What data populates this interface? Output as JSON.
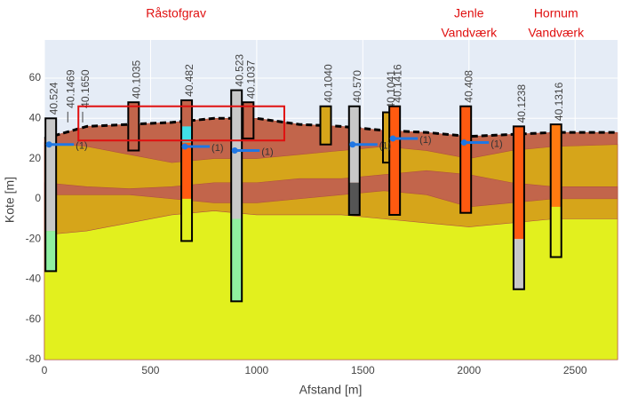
{
  "chart_data": {
    "type": "cross-section",
    "xlabel": "Afstand [m]",
    "ylabel": "Kote [m]",
    "xlim": [
      0,
      2700
    ],
    "ylim": [
      -80,
      79
    ],
    "xticks": [
      0,
      500,
      1000,
      1500,
      2000,
      2500
    ],
    "yticks": [
      -80,
      -60,
      -40,
      -20,
      0,
      20,
      40,
      60
    ],
    "grid": true,
    "x": [
      0,
      200,
      400,
      600,
      800,
      1000,
      1200,
      1400,
      1600,
      1800,
      2000,
      2200,
      2400,
      2700
    ],
    "terrain": [
      30,
      36,
      37,
      38,
      40,
      40,
      37,
      36,
      34,
      33,
      31,
      32,
      33,
      33
    ],
    "layers": [
      {
        "color": "#c2654b",
        "values": [
          30,
          36,
          37,
          38,
          40,
          40,
          37,
          36,
          34,
          33,
          31,
          32,
          33,
          33
        ]
      },
      {
        "color": "#d6a51a",
        "values": [
          28,
          26,
          22,
          18,
          20,
          20,
          22,
          24,
          26,
          24,
          20,
          24,
          26,
          27
        ]
      },
      {
        "color": "#c2654b",
        "values": [
          8,
          6,
          5,
          6,
          8,
          8,
          10,
          10,
          12,
          14,
          12,
          8,
          6,
          6
        ]
      },
      {
        "color": "#d6a51a",
        "values": [
          2,
          2,
          2,
          0,
          -2,
          -2,
          0,
          2,
          4,
          2,
          -4,
          -2,
          0,
          0
        ]
      },
      {
        "color": "#e2f01e",
        "values": [
          -18,
          -16,
          -12,
          -8,
          -6,
          -8,
          -8,
          -8,
          -10,
          -12,
          -14,
          -12,
          -10,
          -10
        ]
      }
    ],
    "boreholes": [
      {
        "name": "40.524",
        "x": 30,
        "segments": [
          {
            "top": 40,
            "bottom": -16,
            "color": "#c8c8c8"
          },
          {
            "top": -16,
            "bottom": -36,
            "color": "#90f0a0"
          }
        ]
      },
      {
        "name": "40.1035",
        "x": 420,
        "segments": [
          {
            "top": 48,
            "bottom": 24,
            "color": "#c2654b"
          }
        ]
      },
      {
        "name": "40.482",
        "x": 670,
        "segments": [
          {
            "top": 49,
            "bottom": 36,
            "color": "#c2654b"
          },
          {
            "top": 36,
            "bottom": 28,
            "color": "#40e0e8"
          },
          {
            "top": 28,
            "bottom": 0,
            "color": "#ff5a10"
          },
          {
            "top": 0,
            "bottom": -21,
            "color": "#e2f01e"
          }
        ]
      },
      {
        "name": "40.523",
        "x": 905,
        "segments": [
          {
            "top": 54,
            "bottom": -10,
            "color": "#c8c8c8"
          },
          {
            "top": -10,
            "bottom": -51,
            "color": "#90f0a0"
          }
        ]
      },
      {
        "name": "40.1037",
        "x": 960,
        "segments": [
          {
            "top": 48,
            "bottom": 30,
            "color": "#c2654b"
          }
        ]
      },
      {
        "name": "40.1040",
        "x": 1325,
        "segments": [
          {
            "top": 46,
            "bottom": 27,
            "color": "#d6a51a"
          }
        ]
      },
      {
        "name": "40.570",
        "x": 1460,
        "segments": [
          {
            "top": 46,
            "bottom": 8,
            "color": "#c8c8c8"
          },
          {
            "top": 8,
            "bottom": -8,
            "color": "#555555"
          }
        ]
      },
      {
        "name": "40.1041",
        "x": 1620,
        "segments": [
          {
            "top": 43,
            "bottom": 18,
            "color": "#d6a51a"
          }
        ]
      },
      {
        "name": "40.1416",
        "x": 1650,
        "segments": [
          {
            "top": 46,
            "bottom": -8,
            "color": "#ff5a10"
          }
        ]
      },
      {
        "name": "40.408",
        "x": 1985,
        "segments": [
          {
            "top": 46,
            "bottom": -7,
            "color": "#ff5a10"
          }
        ]
      },
      {
        "name": "40.1238",
        "x": 2235,
        "segments": [
          {
            "top": 36,
            "bottom": -20,
            "color": "#ff5a10"
          },
          {
            "top": -20,
            "bottom": -45,
            "color": "#c8c8c8"
          }
        ]
      },
      {
        "name": "40.1316",
        "x": 2410,
        "segments": [
          {
            "top": 37,
            "bottom": -4,
            "color": "#ff7a10"
          },
          {
            "top": -4,
            "bottom": -29,
            "color": "#e2f01e"
          }
        ]
      }
    ],
    "markers": [
      {
        "name": "40.1469",
        "x": 110
      },
      {
        "name": "40.1650",
        "x": 180
      }
    ],
    "water_levels": [
      {
        "x": 30,
        "y": 27,
        "label": "(1)"
      },
      {
        "x": 670,
        "y": 26,
        "label": "(1)"
      },
      {
        "x": 905,
        "y": 24,
        "label": "(1)"
      },
      {
        "x": 1460,
        "y": 27,
        "label": "(1)"
      },
      {
        "x": 1650,
        "y": 30,
        "label": "(1)"
      },
      {
        "x": 1985,
        "y": 28,
        "label": "(1)"
      }
    ],
    "box": {
      "x": [
        160,
        1130
      ],
      "y": [
        29,
        46
      ]
    },
    "annotations": [
      {
        "text": "Råstofgrav",
        "x": 620,
        "lines": [
          "Råstofgrav"
        ]
      },
      {
        "text": "Jenle Vandværk",
        "x": 2000,
        "lines": [
          "Jenle",
          "Vandværk"
        ]
      },
      {
        "text": "Hornum Vandværk",
        "x": 2410,
        "lines": [
          "Hornum",
          "Vandværk"
        ]
      }
    ]
  }
}
